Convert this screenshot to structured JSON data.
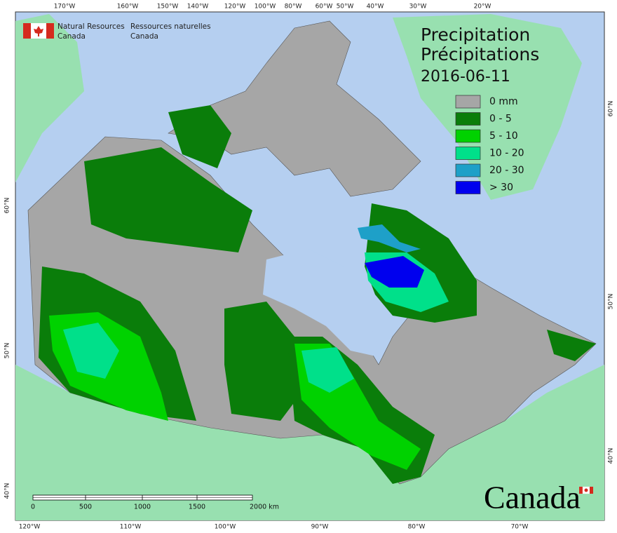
{
  "header": {
    "agency_en": [
      "Natural Resources",
      "Canada"
    ],
    "agency_fr": [
      "Ressources naturelles",
      "Canada"
    ]
  },
  "title": [
    "Precipitation",
    "Précipitations"
  ],
  "date": "2016-06-11",
  "legend": [
    {
      "label": "0 mm",
      "color": "#a6a6a6"
    },
    {
      "label": "0 - 5",
      "color": "#0a7d0a"
    },
    {
      "label": "5 - 10",
      "color": "#00d200"
    },
    {
      "label": "10 - 20",
      "color": "#00e08a"
    },
    {
      "label": "20 - 30",
      "color": "#1ea0c8"
    },
    {
      "label": "> 30",
      "color": "#0000ee"
    }
  ],
  "graticule": {
    "top": [
      "170°W",
      "160°W",
      "150°W",
      "140°W",
      "120°W",
      "100°W",
      "80°W",
      "60°W",
      "50°W",
      "40°W",
      "30°W",
      "20°W"
    ],
    "bottom": [
      "120°W",
      "110°W",
      "100°W",
      "90°W",
      "80°W",
      "70°W"
    ],
    "left": [
      "60°N",
      "50°N",
      "40°N"
    ],
    "right": [
      "60°N",
      "50°N",
      "40°N"
    ]
  },
  "scale_bar": {
    "ticks": [
      "0",
      "500",
      "1000",
      "1500",
      "2000 km"
    ]
  },
  "wordmark": "Canada"
}
